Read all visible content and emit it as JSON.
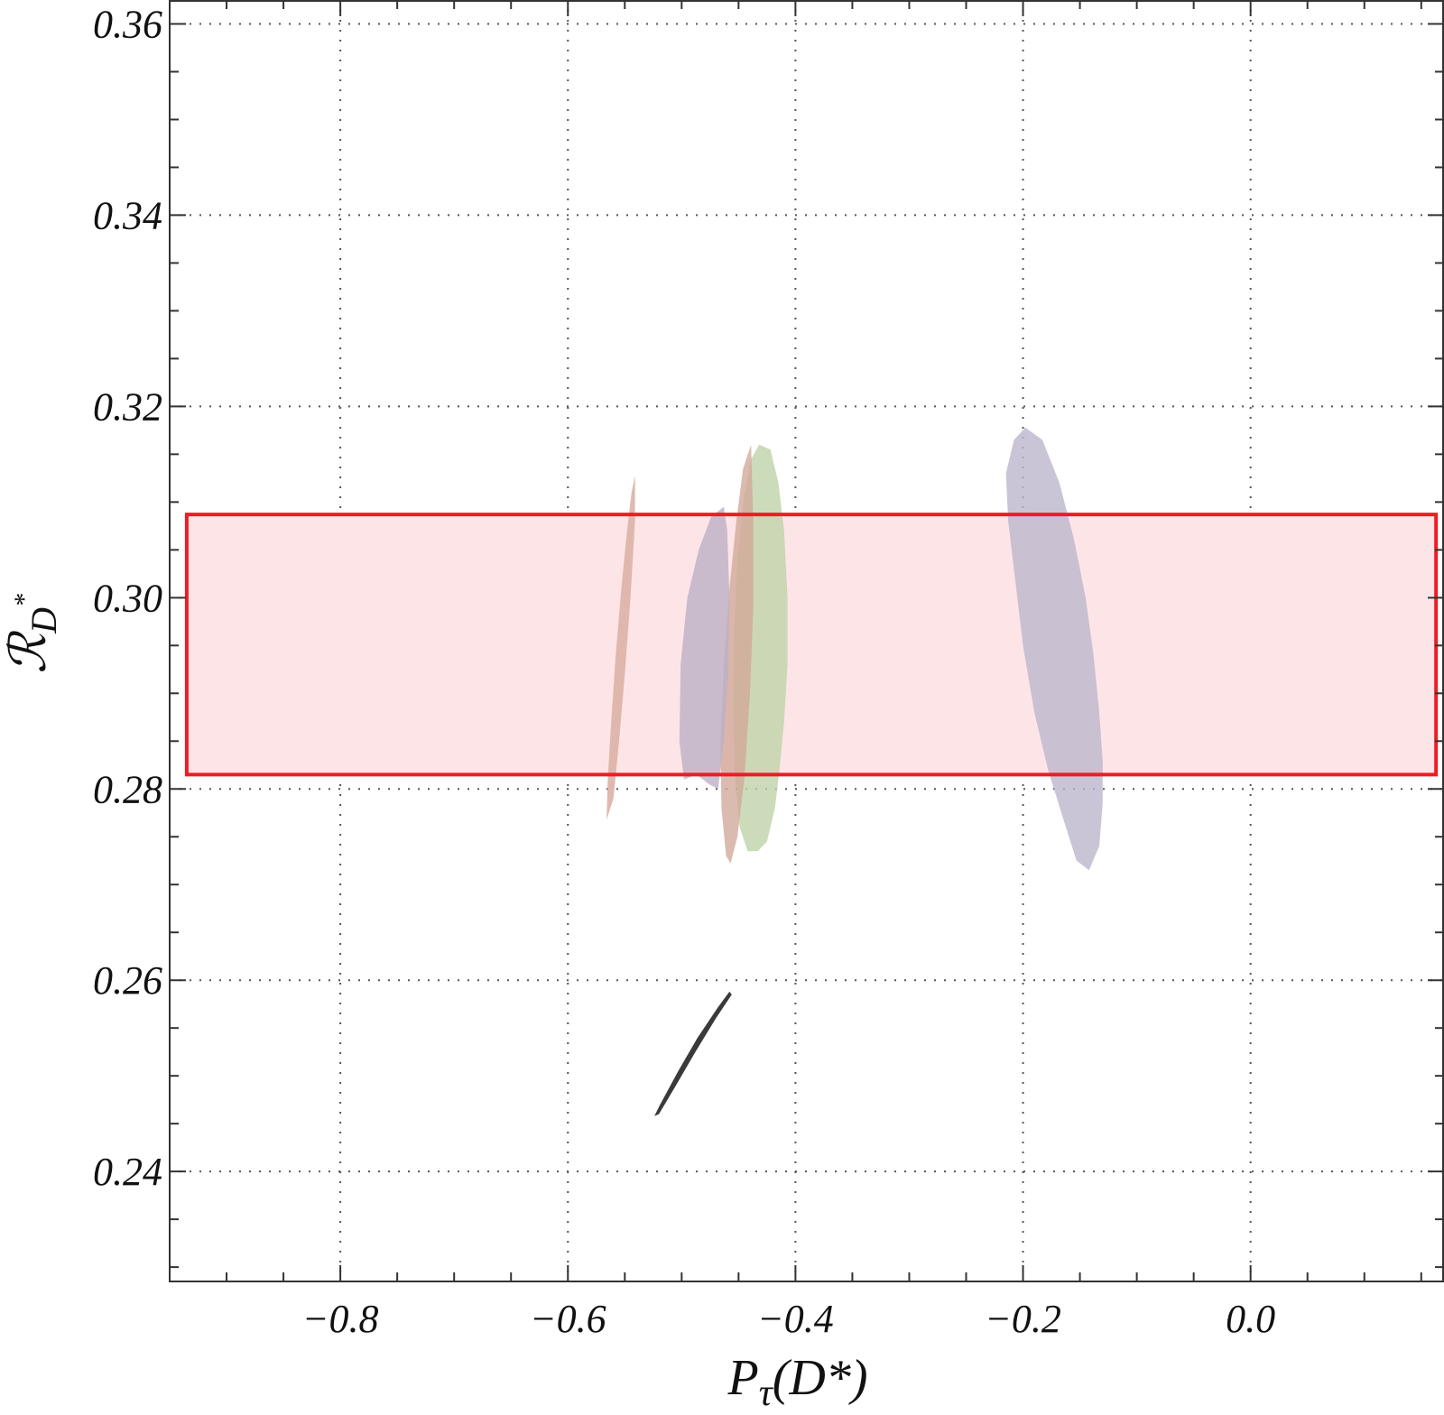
{
  "chart_data": {
    "type": "scatter",
    "title": "",
    "xlabel": "Pτ(D*)",
    "xlabel_parts": {
      "main": "P",
      "sub": "τ",
      "arg": "(D*)"
    },
    "ylabel": "ℛD*",
    "ylabel_parts": {
      "main": "ℛ",
      "sub": "D",
      "sup": "*"
    },
    "xlim": [
      -0.95,
      0.17
    ],
    "ylim": [
      0.2285,
      0.3625
    ],
    "grid": true,
    "x_ticks": [
      -0.8,
      -0.6,
      -0.4,
      -0.2,
      0.0
    ],
    "x_tick_labels": [
      "−0.8",
      "−0.6",
      "−0.4",
      "−0.2",
      "0.0"
    ],
    "y_ticks": [
      0.24,
      0.26,
      0.28,
      0.3,
      0.32,
      0.34,
      0.36
    ],
    "y_tick_labels": [
      "0.24",
      "0.26",
      "0.28",
      "0.30",
      "0.32",
      "0.34",
      "0.36"
    ],
    "band": {
      "x_range": [
        -0.935,
        0.163
      ],
      "y_range": [
        0.2815,
        0.3087
      ],
      "fill": "#fde5e7",
      "stroke": "#ee1c24"
    },
    "regions": [
      {
        "color": "#bcb6cc",
        "opacity": 0.8,
        "points": [
          [
            -0.198,
            0.3178
          ],
          [
            -0.183,
            0.3165
          ],
          [
            -0.168,
            0.312
          ],
          [
            -0.155,
            0.306
          ],
          [
            -0.145,
            0.3
          ],
          [
            -0.138,
            0.294
          ],
          [
            -0.133,
            0.288
          ],
          [
            -0.13,
            0.283
          ],
          [
            -0.13,
            0.2785
          ],
          [
            -0.133,
            0.274
          ],
          [
            -0.142,
            0.2715
          ],
          [
            -0.153,
            0.2725
          ],
          [
            -0.165,
            0.277
          ],
          [
            -0.178,
            0.282
          ],
          [
            -0.19,
            0.288
          ],
          [
            -0.2,
            0.295
          ],
          [
            -0.207,
            0.302
          ],
          [
            -0.213,
            0.308
          ],
          [
            -0.215,
            0.313
          ],
          [
            -0.208,
            0.3165
          ]
        ]
      },
      {
        "color": "#bfd3a9",
        "opacity": 0.8,
        "points": [
          [
            -0.432,
            0.316
          ],
          [
            -0.422,
            0.3155
          ],
          [
            -0.415,
            0.312
          ],
          [
            -0.41,
            0.307
          ],
          [
            -0.407,
            0.3
          ],
          [
            -0.407,
            0.293
          ],
          [
            -0.41,
            0.287
          ],
          [
            -0.414,
            0.282
          ],
          [
            -0.418,
            0.278
          ],
          [
            -0.425,
            0.2745
          ],
          [
            -0.433,
            0.2735
          ],
          [
            -0.442,
            0.2735
          ],
          [
            -0.449,
            0.276
          ],
          [
            -0.453,
            0.281
          ],
          [
            -0.455,
            0.288
          ],
          [
            -0.454,
            0.296
          ],
          [
            -0.451,
            0.304
          ],
          [
            -0.446,
            0.31
          ],
          [
            -0.439,
            0.3145
          ]
        ]
      },
      {
        "color": "#d1a898",
        "opacity": 0.78,
        "points": [
          [
            -0.439,
            0.316
          ],
          [
            -0.437,
            0.308
          ],
          [
            -0.437,
            0.299
          ],
          [
            -0.44,
            0.29
          ],
          [
            -0.445,
            0.281
          ],
          [
            -0.451,
            0.275
          ],
          [
            -0.457,
            0.2722
          ],
          [
            -0.461,
            0.273
          ],
          [
            -0.465,
            0.278
          ],
          [
            -0.466,
            0.285
          ],
          [
            -0.463,
            0.293
          ],
          [
            -0.458,
            0.301
          ],
          [
            -0.452,
            0.308
          ],
          [
            -0.446,
            0.3135
          ]
        ]
      },
      {
        "color": "#bcb0c6",
        "opacity": 0.8,
        "points": [
          [
            -0.463,
            0.3095
          ],
          [
            -0.46,
            0.307
          ],
          [
            -0.458,
            0.3
          ],
          [
            -0.459,
            0.292
          ],
          [
            -0.463,
            0.285
          ],
          [
            -0.468,
            0.28
          ],
          [
            -0.476,
            0.2805
          ],
          [
            -0.487,
            0.2815
          ],
          [
            -0.498,
            0.281
          ],
          [
            -0.502,
            0.285
          ],
          [
            -0.501,
            0.293
          ],
          [
            -0.495,
            0.3
          ],
          [
            -0.485,
            0.305
          ],
          [
            -0.474,
            0.3085
          ]
        ]
      },
      {
        "color": "#dcb1a6",
        "opacity": 0.9,
        "points": [
          [
            -0.541,
            0.3128
          ],
          [
            -0.541,
            0.308
          ],
          [
            -0.545,
            0.3
          ],
          [
            -0.55,
            0.292
          ],
          [
            -0.555,
            0.285
          ],
          [
            -0.56,
            0.279
          ],
          [
            -0.566,
            0.2768
          ],
          [
            -0.565,
            0.281
          ],
          [
            -0.562,
            0.287
          ],
          [
            -0.558,
            0.294
          ],
          [
            -0.553,
            0.301
          ],
          [
            -0.548,
            0.307
          ],
          [
            -0.544,
            0.311
          ]
        ]
      },
      {
        "type": "ellipse",
        "color": "#3a3a3a",
        "opacity": 1,
        "center": [
          -0.495,
          0.2522
        ],
        "points": [
          [
            -0.456,
            0.2585
          ],
          [
            -0.47,
            0.256
          ],
          [
            -0.488,
            0.2525
          ],
          [
            -0.505,
            0.249
          ],
          [
            -0.52,
            0.246
          ],
          [
            -0.524,
            0.2458
          ],
          [
            -0.519,
            0.247
          ],
          [
            -0.503,
            0.2505
          ],
          [
            -0.486,
            0.254
          ],
          [
            -0.468,
            0.2572
          ],
          [
            -0.458,
            0.2588
          ]
        ]
      }
    ]
  }
}
